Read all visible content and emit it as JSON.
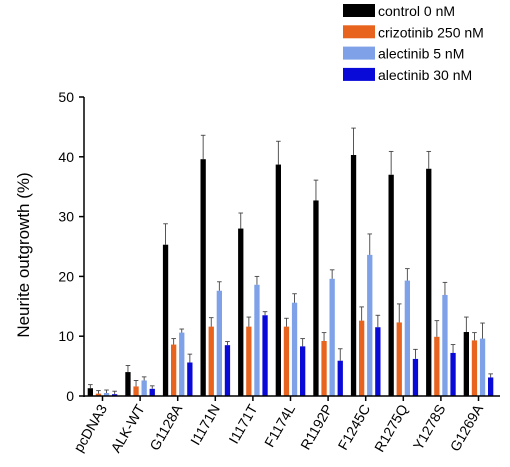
{
  "chart_data": {
    "type": "bar",
    "title": "",
    "xlabel": "",
    "ylabel": "Neurite outgrowth (%)",
    "ylim": [
      0,
      50
    ],
    "yticks": [
      0,
      10,
      20,
      30,
      40,
      50
    ],
    "grid": false,
    "legend_position": "top-right",
    "error_bars": true,
    "categories": [
      "pcDNA3",
      "ALK-WT",
      "G1128A",
      "I1171N",
      "I1171T",
      "F1174L",
      "R1192P",
      "F1245C",
      "R1275Q",
      "Y1278S",
      "G1269A"
    ],
    "series": [
      {
        "name": "control 0 nM",
        "color": "#000000",
        "values": [
          1.3,
          4.0,
          25.3,
          39.6,
          28.0,
          38.7,
          32.7,
          40.3,
          37.0,
          38.0,
          10.7
        ],
        "errors": [
          0.6,
          1.1,
          3.5,
          4.0,
          2.6,
          3.9,
          3.4,
          4.5,
          3.9,
          2.9,
          2.5
        ]
      },
      {
        "name": "crizotinib 250 nM",
        "color": "#e8641e",
        "values": [
          0.4,
          1.6,
          8.6,
          11.6,
          11.6,
          11.6,
          9.2,
          12.6,
          12.3,
          9.9,
          9.3
        ],
        "errors": [
          0.5,
          1.0,
          1.0,
          1.5,
          1.6,
          1.4,
          1.4,
          2.3,
          3.1,
          2.7,
          1.3
        ]
      },
      {
        "name": "alectinib 5 nM",
        "color": "#7ea1e8",
        "values": [
          0.5,
          2.6,
          10.6,
          17.6,
          18.6,
          15.6,
          19.6,
          23.6,
          19.3,
          16.9,
          9.6
        ],
        "errors": [
          0.5,
          0.6,
          0.6,
          1.5,
          1.4,
          1.5,
          1.5,
          3.5,
          2.0,
          2.1,
          2.6
        ]
      },
      {
        "name": "alectinib 30 nM",
        "color": "#0a0ad8",
        "values": [
          0.3,
          1.2,
          5.6,
          8.5,
          13.5,
          8.3,
          5.9,
          11.5,
          6.2,
          7.2,
          3.1
        ],
        "errors": [
          0.5,
          0.5,
          1.4,
          0.6,
          0.6,
          1.3,
          2.0,
          2.0,
          1.6,
          1.4,
          0.6
        ]
      }
    ]
  }
}
